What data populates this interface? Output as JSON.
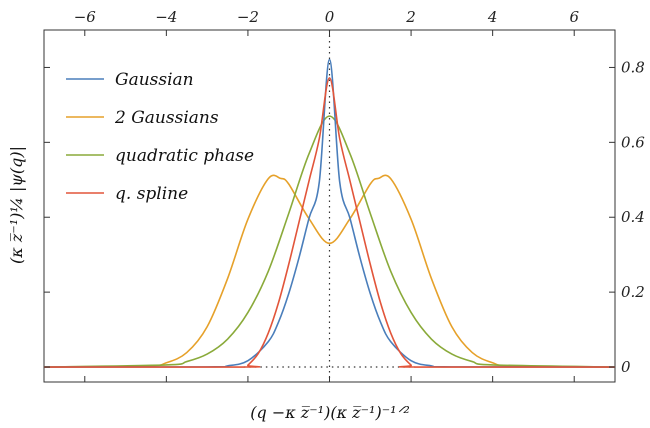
{
  "chart_data": {
    "type": "line",
    "title": "",
    "xlabel": "(q −κ z̅⁻¹)(κ z̅⁻¹)⁻¹ᐟ²",
    "ylabel": "(κ z̅⁻¹)¼ |ψ(q)|",
    "xlim": [
      -7,
      7
    ],
    "ylim": [
      -0.04,
      0.9
    ],
    "x_ticks": [
      "−6",
      "−4",
      "−2",
      "0",
      "2",
      "4",
      "6"
    ],
    "x_tick_values": [
      -6,
      -4,
      -2,
      0,
      2,
      4,
      6
    ],
    "y_ticks": [
      "0",
      "0.2",
      "0.4",
      "0.6",
      "0.8"
    ],
    "y_tick_values": [
      0,
      0.2,
      0.4,
      0.6,
      0.8
    ],
    "x_tick_position": "top",
    "y_tick_position": "right",
    "legend_position": "top-left",
    "grid": false,
    "reference_lines": [
      "vertical dotted line at x = 0",
      "horizontal dotted line at y = 0"
    ],
    "series": [
      {
        "name": "Gaussian",
        "color": "#4a7ebb",
        "x": [
          -7,
          -3,
          -2.5,
          -2,
          -1.5,
          -1.25,
          -1,
          -0.75,
          -0.5,
          -0.25,
          0,
          0.25,
          0.5,
          0.75,
          1,
          1.25,
          1.5,
          2,
          2.5,
          3,
          7
        ],
        "y": [
          0,
          0.0004,
          0.0031,
          0.0169,
          0.0678,
          0.12,
          0.196,
          0.291,
          0.398,
          0.494,
          0.821,
          0.494,
          0.398,
          0.291,
          0.196,
          0.12,
          0.0678,
          0.0169,
          0.0031,
          0.0004,
          0
        ]
      },
      {
        "name": "2 Gaussians",
        "color": "#e6a12a",
        "x": [
          -7,
          -4.5,
          -4,
          -3.5,
          -3,
          -2.5,
          -2,
          -1.5,
          -1.2,
          -1,
          -0.5,
          0,
          0.5,
          1,
          1.2,
          1.5,
          2,
          2.5,
          3,
          3.5,
          4,
          4.5,
          7
        ],
        "y": [
          0,
          0.0028,
          0.0113,
          0.0386,
          0.1075,
          0.2359,
          0.3947,
          0.5031,
          0.5038,
          0.4888,
          0.3957,
          0.3303,
          0.3957,
          0.4888,
          0.5038,
          0.5031,
          0.3947,
          0.2359,
          0.1075,
          0.0386,
          0.0113,
          0.0028,
          0
        ]
      },
      {
        "name": "quadratic phase",
        "color": "#8aaa3a",
        "x": [
          -7,
          -4,
          -3.5,
          -3,
          -2.5,
          -2,
          -1.5,
          -1,
          -0.5,
          0,
          0.5,
          1,
          1.5,
          2,
          2.5,
          3,
          3.5,
          4,
          7
        ],
        "y": [
          0,
          0.0056,
          0.0146,
          0.0345,
          0.0744,
          0.1457,
          0.256,
          0.41,
          0.57,
          0.67,
          0.57,
          0.41,
          0.256,
          0.1457,
          0.0744,
          0.0345,
          0.0146,
          0.0056,
          0
        ]
      },
      {
        "name": "q. spline",
        "color": "#e2553a",
        "x": [
          -7,
          -2.1,
          -2,
          -1.75,
          -1.5,
          -1.25,
          -1,
          -0.75,
          -0.5,
          -0.25,
          0,
          0.25,
          0.5,
          0.75,
          1,
          1.25,
          1.5,
          1.75,
          2,
          2.1,
          7
        ],
        "y": [
          0,
          0,
          0.0051,
          0.0355,
          0.091,
          0.1719,
          0.2741,
          0.3858,
          0.498,
          0.61,
          0.772,
          0.61,
          0.498,
          0.3858,
          0.2741,
          0.1719,
          0.091,
          0.0355,
          0.0051,
          0,
          0
        ]
      }
    ]
  }
}
